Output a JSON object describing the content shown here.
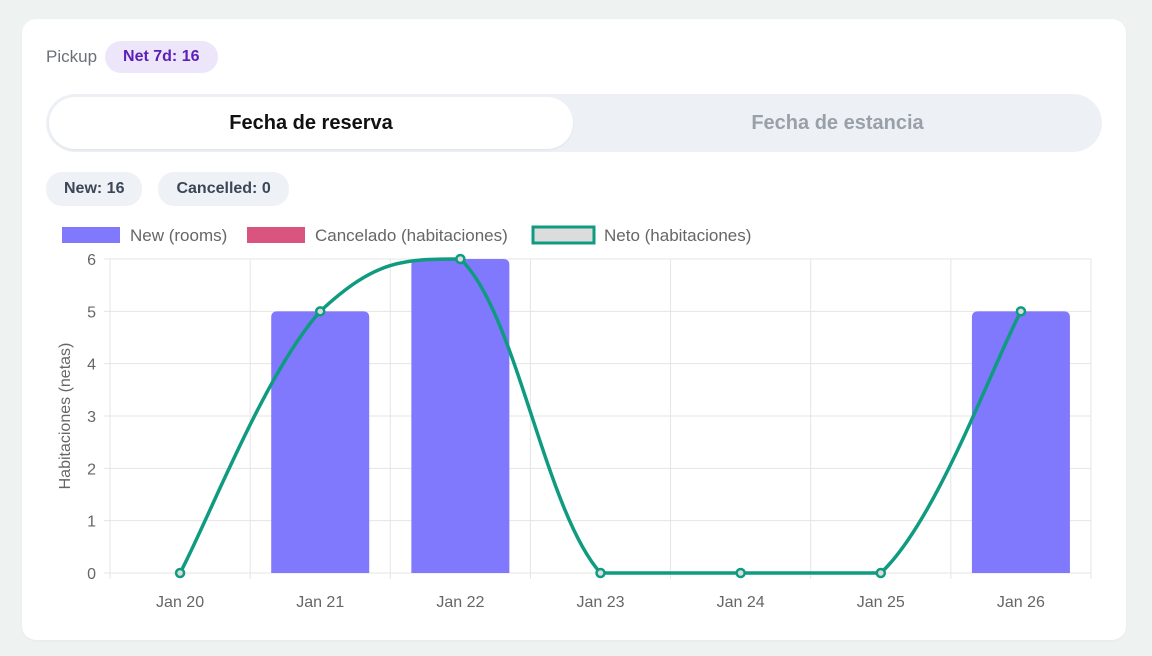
{
  "header": {
    "label": "Pickup",
    "net_badge": "Net 7d: 16"
  },
  "toggle": {
    "options": [
      "Fecha de reserva",
      "Fecha de estancia"
    ],
    "active": 0
  },
  "counts": {
    "new": "New: 16",
    "cancelled": "Cancelled: 0"
  },
  "colors": {
    "new": "#8078fd",
    "cancelled": "#d9557f",
    "net_line": "#0f9b80",
    "net_fill": "#dcdcdc",
    "grid": "#e5e5e5",
    "axis_text": "#666666"
  },
  "chart_data": {
    "type": "bar",
    "categories": [
      "Jan 20",
      "Jan 21",
      "Jan 22",
      "Jan 23",
      "Jan 24",
      "Jan 25",
      "Jan 26"
    ],
    "series": [
      {
        "name": "New (rooms)",
        "type": "bar",
        "values": [
          0,
          5,
          6,
          0,
          0,
          0,
          5
        ]
      },
      {
        "name": "Cancelado (habitaciones)",
        "type": "bar",
        "values": [
          0,
          0,
          0,
          0,
          0,
          0,
          0
        ]
      },
      {
        "name": "Neto (habitaciones)",
        "type": "line",
        "values": [
          0,
          5,
          6,
          0,
          0,
          0,
          5
        ]
      }
    ],
    "ylabel": "Habitaciones (netas)",
    "ylim": [
      0,
      6
    ],
    "yticks": [
      "0",
      "1",
      "2",
      "3",
      "4",
      "5",
      "6"
    ],
    "grid": true,
    "legend": "top-left"
  }
}
